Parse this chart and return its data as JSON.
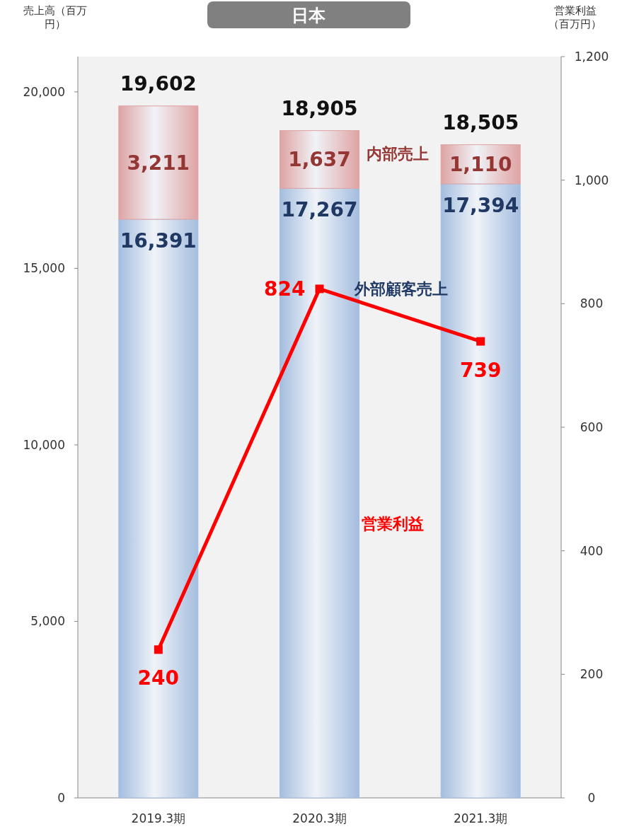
{
  "chart_data": {
    "type": "bar",
    "title": "日本",
    "stacked": true,
    "ylabel": "売上高（百万円）",
    "y2label": "営業利益（百万円）",
    "categories": [
      "2019.3期",
      "2020.3期",
      "2021.3期"
    ],
    "series": [
      {
        "name": "外部顧客売上",
        "color": "#a4bddf",
        "values": [
          16391,
          17267,
          17394
        ],
        "value_labels": [
          "16,391",
          "17,267",
          "17,394"
        ]
      },
      {
        "name": "内部売上",
        "color": "#dfa3a3",
        "values": [
          3211,
          1637,
          1110
        ],
        "value_labels": [
          "3,211",
          "1,637",
          "1,110"
        ]
      },
      {
        "name": "営業利益",
        "type": "line",
        "axis": "y2",
        "color": "#ff0000",
        "marker": "square",
        "values": [
          240,
          824,
          739
        ],
        "value_labels": [
          "240",
          "824",
          "739"
        ]
      }
    ],
    "totals": [
      "19,602",
      "18,905",
      "18,505"
    ],
    "ylim": [
      0,
      21000
    ],
    "yticks": [
      0,
      {
        "value": 5000,
        "label": "5,000"
      },
      {
        "value": 10000,
        "label": "10,000"
      },
      {
        "value": 15000,
        "label": "15,000"
      },
      {
        "value": 20000,
        "label": "20,000"
      }
    ],
    "y2lim": [
      0,
      1200
    ],
    "y2ticks": [
      0,
      200,
      400,
      600,
      800,
      {
        "value": 1000,
        "label": "1,000"
      },
      {
        "value": 1200,
        "label": "1,200"
      }
    ],
    "grid": false
  }
}
